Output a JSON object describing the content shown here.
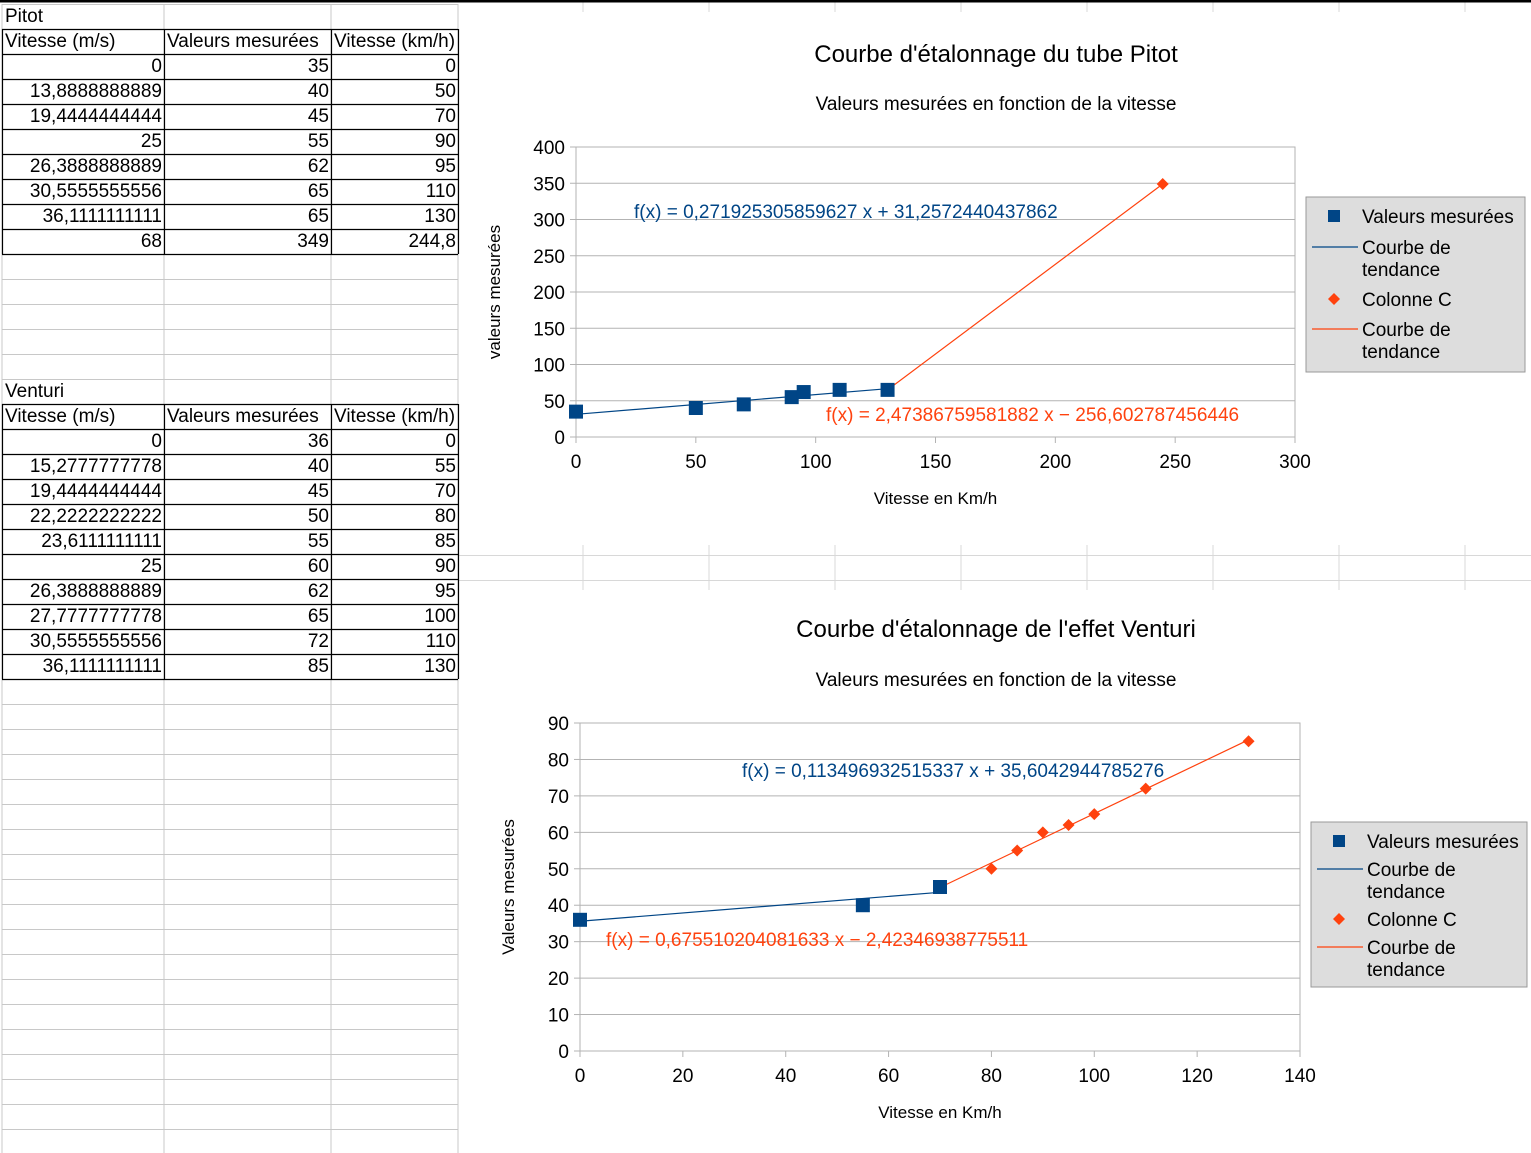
{
  "pitot": {
    "title": "Pitot",
    "headers": [
      "Vitesse (m/s)",
      "Valeurs mesurées",
      "Vitesse (km/h)"
    ],
    "rows": [
      [
        "0",
        "35",
        "0"
      ],
      [
        "13,8888888889",
        "40",
        "50"
      ],
      [
        "19,4444444444",
        "45",
        "70"
      ],
      [
        "25",
        "55",
        "90"
      ],
      [
        "26,3888888889",
        "62",
        "95"
      ],
      [
        "30,5555555556",
        "65",
        "110"
      ],
      [
        "36,1111111111",
        "65",
        "130"
      ],
      [
        "68",
        "349",
        "244,8"
      ]
    ]
  },
  "venturi": {
    "title": "Venturi",
    "headers": [
      "Vitesse (m/s)",
      "Valeurs mesurées",
      "Vitesse (km/h)"
    ],
    "rows": [
      [
        "0",
        "36",
        "0"
      ],
      [
        "15,2777777778",
        "40",
        "55"
      ],
      [
        "19,4444444444",
        "45",
        "70"
      ],
      [
        "22,2222222222",
        "50",
        "80"
      ],
      [
        "23,6111111111",
        "55",
        "85"
      ],
      [
        "25",
        "60",
        "90"
      ],
      [
        "26,3888888889",
        "62",
        "95"
      ],
      [
        "27,7777777778",
        "65",
        "100"
      ],
      [
        "30,5555555556",
        "72",
        "110"
      ],
      [
        "36,1111111111",
        "85",
        "130"
      ]
    ]
  },
  "chart_data": [
    {
      "type": "scatter",
      "title": "Courbe d'étalonnage du tube Pitot",
      "subtitle": "Valeurs mesurées en fonction de la vitesse",
      "xlabel": "Vitesse en Km/h",
      "ylabel": "valeurs mesurées",
      "xlim": [
        0,
        300
      ],
      "ylim": [
        0,
        400
      ],
      "xticks": [
        0,
        50,
        100,
        150,
        200,
        250,
        300
      ],
      "yticks": [
        0,
        50,
        100,
        150,
        200,
        250,
        300,
        350,
        400
      ],
      "grid": "horizontal",
      "legend_position": "right",
      "series": [
        {
          "name": "Valeurs mesurées",
          "marker": "square",
          "color": "#004586",
          "x": [
            0,
            50,
            70,
            90,
            95,
            110,
            130
          ],
          "y": [
            35,
            40,
            45,
            55,
            62,
            65,
            65
          ]
        },
        {
          "name": "Colonne C",
          "marker": "diamond",
          "color": "#ff420e",
          "x": [
            244.8
          ],
          "y": [
            349
          ]
        }
      ],
      "trendlines": [
        {
          "name": "Courbe de tendance",
          "color": "#004586",
          "equation": "f(x) = 0,271925305859627 x + 31,2572440437862",
          "slope": 0.271925305859627,
          "intercept": 31.2572440437862,
          "x_range": [
            0,
            130
          ]
        },
        {
          "name": "Courbe de tendance",
          "color": "#ff420e",
          "equation": "f(x) = 2,47386759581882 x − 256,602787456446",
          "slope": 2.47386759581882,
          "intercept": -256.602787456446,
          "x_range": [
            130,
            244.8
          ]
        }
      ]
    },
    {
      "type": "scatter",
      "title": "Courbe d'étalonnage de l'effet Venturi",
      "subtitle": "Valeurs mesurées en fonction de la vitesse",
      "xlabel": "Vitesse en Km/h",
      "ylabel": "Valeurs mesurées",
      "xlim": [
        0,
        140
      ],
      "ylim": [
        0,
        90
      ],
      "xticks": [
        0,
        20,
        40,
        60,
        80,
        100,
        120,
        140
      ],
      "yticks": [
        0,
        10,
        20,
        30,
        40,
        50,
        60,
        70,
        80,
        90
      ],
      "grid": "horizontal",
      "legend_position": "right",
      "series": [
        {
          "name": "Valeurs mesurées",
          "marker": "square",
          "color": "#004586",
          "x": [
            0,
            55,
            70
          ],
          "y": [
            36,
            40,
            45
          ]
        },
        {
          "name": "Colonne C",
          "marker": "diamond",
          "color": "#ff420e",
          "x": [
            80,
            85,
            90,
            95,
            100,
            110,
            130
          ],
          "y": [
            50,
            55,
            60,
            62,
            65,
            72,
            85
          ]
        }
      ],
      "trendlines": [
        {
          "name": "Courbe de tendance",
          "color": "#004586",
          "equation": "f(x) = 0,113496932515337 x + 35,6042944785276",
          "slope": 0.113496932515337,
          "intercept": 35.6042944785276,
          "x_range": [
            0,
            70
          ]
        },
        {
          "name": "Courbe de tendance",
          "color": "#ff420e",
          "equation": "f(x) = 0,675510204081633 x − 2,42346938775511",
          "slope": 0.675510204081633,
          "intercept": -2.42346938775511,
          "x_range": [
            70,
            130
          ]
        }
      ]
    }
  ]
}
